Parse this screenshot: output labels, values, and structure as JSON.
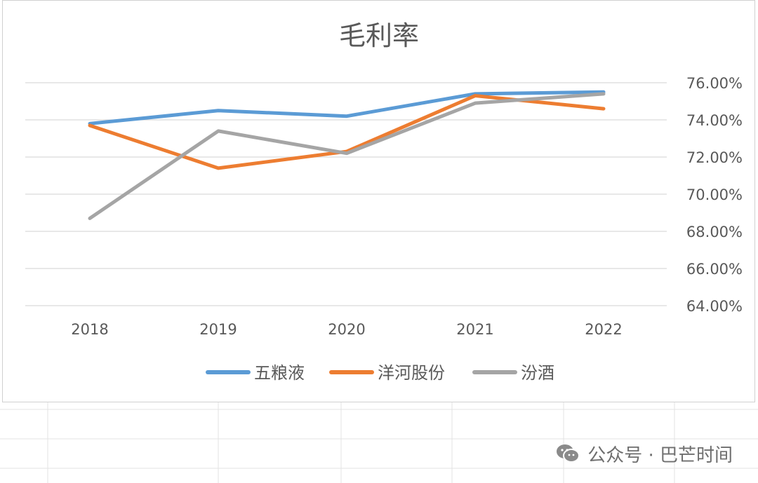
{
  "chart_data": {
    "type": "line",
    "title": "毛利率",
    "categories": [
      "2018",
      "2019",
      "2020",
      "2021",
      "2022"
    ],
    "series": [
      {
        "name": "五粮液",
        "color": "#5B9BD5",
        "values": [
          73.8,
          74.5,
          74.2,
          75.4,
          75.5
        ]
      },
      {
        "name": "洋河股份",
        "color": "#ED7D31",
        "values": [
          73.7,
          71.4,
          72.3,
          75.3,
          74.6
        ]
      },
      {
        "name": "汾酒",
        "color": "#A5A5A5",
        "values": [
          68.7,
          73.4,
          72.2,
          74.9,
          75.4
        ]
      }
    ],
    "ylim": [
      64,
      76
    ],
    "yticks": [
      "64.00%",
      "66.00%",
      "68.00%",
      "70.00%",
      "72.00%",
      "74.00%",
      "76.00%"
    ],
    "y_axis_side": "right",
    "grid": true,
    "legend": "bottom"
  },
  "watermark": {
    "icon": "wechat-icon",
    "text": "公众号 · 巴芒时间"
  }
}
